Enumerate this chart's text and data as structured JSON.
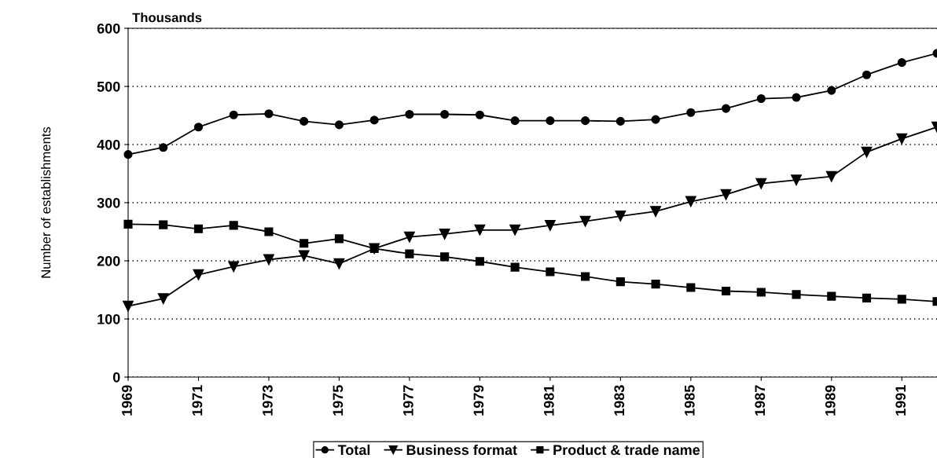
{
  "chart_data": {
    "type": "line",
    "ylabel": "Number of establishments",
    "annotations": [
      "Thousands"
    ],
    "x": [
      1969,
      1970,
      1971,
      1972,
      1973,
      1974,
      1975,
      1976,
      1977,
      1978,
      1979,
      1980,
      1981,
      1982,
      1983,
      1984,
      1985,
      1986,
      1987,
      1988,
      1989,
      1990,
      1991,
      1992
    ],
    "xlim": [
      1969,
      1992
    ],
    "xticks": [
      1969,
      1971,
      1973,
      1975,
      1977,
      1979,
      1981,
      1983,
      1985,
      1987,
      1989,
      1991
    ],
    "ylim": [
      0,
      600
    ],
    "yticks": [
      0,
      100,
      200,
      300,
      400,
      500,
      600
    ],
    "grid": "y",
    "legend": "bottom",
    "series": [
      {
        "name": "Total",
        "color": "#000000",
        "marker": "circle",
        "values": [
          383,
          395,
          430,
          451,
          453,
          440,
          434,
          442,
          452,
          452,
          451,
          441,
          441,
          441,
          440,
          443,
          455,
          462,
          479,
          481,
          493,
          520,
          541,
          557
        ]
      },
      {
        "name": "Business format",
        "color": "#000000",
        "marker": "triangle",
        "values": [
          122,
          135,
          176,
          190,
          202,
          209,
          195,
          221,
          241,
          246,
          253,
          253,
          261,
          268,
          277,
          285,
          302,
          314,
          333,
          339,
          345,
          387,
          410,
          430
        ]
      },
      {
        "name": "Product & trade name",
        "color": "#000000",
        "marker": "square",
        "values": [
          263,
          262,
          255,
          261,
          250,
          230,
          238,
          221,
          212,
          207,
          199,
          189,
          181,
          173,
          164,
          160,
          154,
          148,
          146,
          142,
          139,
          136,
          134,
          130
        ]
      }
    ]
  }
}
